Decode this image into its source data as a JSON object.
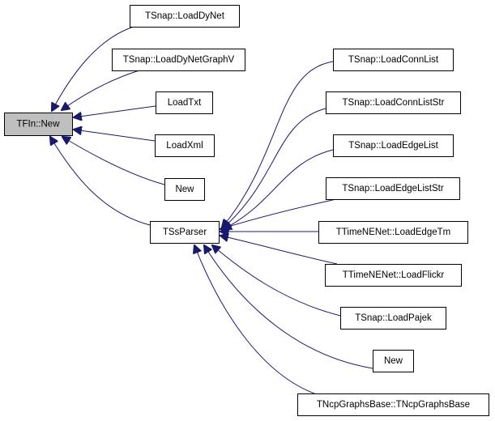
{
  "colors": {
    "edge": "#191970",
    "root_fill": "#bfbfbf",
    "node_fill": "#ffffff"
  },
  "nodes": {
    "root": "TFIn::New",
    "load_dynet": "TSnap::LoadDyNet",
    "load_dynet_graphv": "TSnap::LoadDyNetGraphV",
    "load_txt": "LoadTxt",
    "load_xml": "LoadXml",
    "new_left": "New",
    "tssparser": "TSsParser",
    "load_connlist": "TSnap::LoadConnList",
    "load_connliststr": "TSnap::LoadConnListStr",
    "load_edgelist": "TSnap::LoadEdgeList",
    "load_edgeliststr": "TSnap::LoadEdgeListStr",
    "load_edgetm": "TTimeNENet::LoadEdgeTm",
    "load_flickr": "TTimeNENet::LoadFlickr",
    "load_pajek": "TSnap::LoadPajek",
    "new_right": "New",
    "ncp_graphs_base": "TNcpGraphsBase::TNcpGraphsBase"
  }
}
